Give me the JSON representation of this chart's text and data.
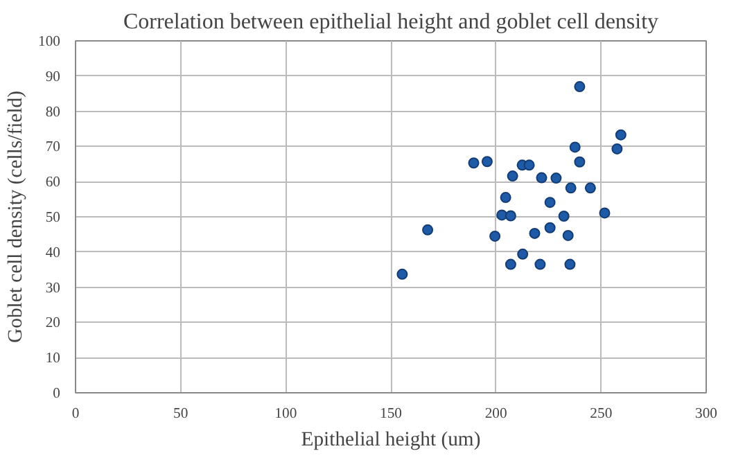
{
  "chart_data": {
    "type": "scatter",
    "title": "Correlation between epithelial height and goblet cell density",
    "xlabel": "Epithelial height (um)",
    "ylabel": "Goblet cell density (cells/field)",
    "x": [
      155.4,
      167.5,
      199.5,
      218.4,
      225.7,
      234.3,
      212.7,
      207,
      221,
      235.2,
      239.8,
      259.4,
      257.6,
      237.6,
      239.8,
      189.4,
      195.8,
      212.5,
      215.8,
      207.9,
      221.7,
      228.6,
      235.6,
      244.9,
      204.6,
      225.7,
      202.8,
      207,
      232.3,
      251.7
    ],
    "series": [
      {
        "color": "#1f5aa6",
        "values": [
          33.7,
          46.3,
          44.5,
          45.3,
          46.9,
          44.7,
          39.4,
          36.5,
          36.5,
          36.5,
          87,
          73.3,
          69.3,
          69.8,
          65.6,
          65.3,
          65.7,
          64.7,
          64.7,
          61.6,
          61.1,
          61,
          58.2,
          58.2,
          55.5,
          54.1,
          50.5,
          50.3,
          50.2,
          51.1
        ]
      }
    ],
    "xlim": [
      0,
      300
    ],
    "xticks": [
      0,
      50,
      100,
      150,
      200,
      250,
      300
    ],
    "ylim": [
      0,
      100
    ],
    "yticks": [
      0,
      10,
      20,
      30,
      40,
      50,
      60,
      70,
      80,
      90,
      100
    ],
    "grid": true,
    "marker": "circle"
  }
}
